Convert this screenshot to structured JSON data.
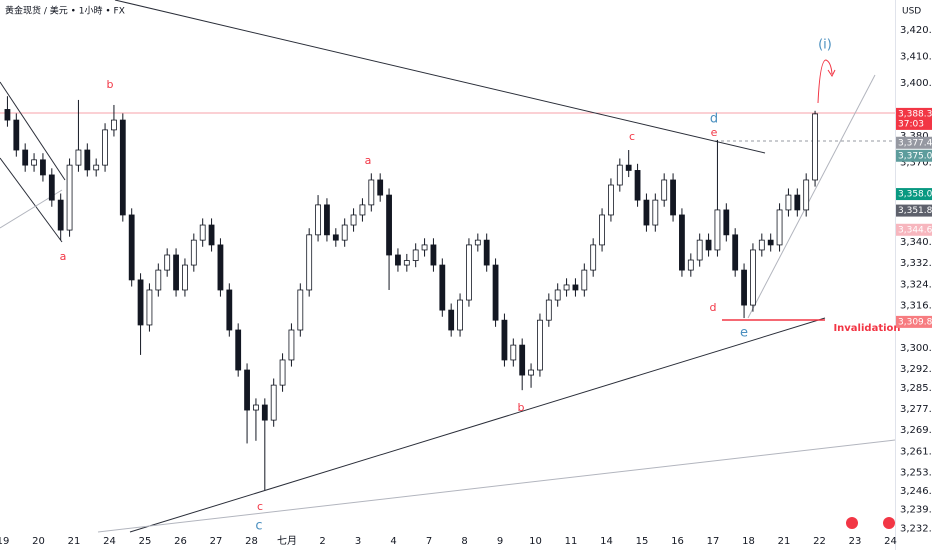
{
  "chart_data": {
    "type": "candlestick",
    "title": "黄金现货 / 美元 • 1小時 • FX",
    "currency": "USD",
    "countdown": "37:03",
    "categories": [
      "19",
      "20",
      "21",
      "24",
      "25",
      "26",
      "27",
      "28",
      "七月",
      "2",
      "3",
      "4",
      "7",
      "8",
      "9",
      "10",
      "11",
      "14",
      "15",
      "16",
      "17",
      "18",
      "21",
      "22",
      "23",
      "24"
    ],
    "up_color": "#ffffff",
    "down_color": "#131722",
    "ylim": [
      3223.8,
      3431.3
    ],
    "yticks": [
      {
        "value": 3420,
        "label": "3,420.00"
      },
      {
        "value": 3410,
        "label": "3,410.00"
      },
      {
        "value": 3400,
        "label": "3,400.00"
      },
      {
        "value": 3380,
        "label": "3,380.00"
      },
      {
        "value": 3370,
        "label": "3,370.00"
      },
      {
        "value": 3340,
        "label": "3,340.00"
      },
      {
        "value": 3332,
        "label": "3,332.00"
      },
      {
        "value": 3324,
        "label": "3,324.00"
      },
      {
        "value": 3316,
        "label": "3,316.00"
      },
      {
        "value": 3300,
        "label": "3,300.00"
      },
      {
        "value": 3292,
        "label": "3,292.00"
      },
      {
        "value": 3285,
        "label": "3,285.00"
      },
      {
        "value": 3277,
        "label": "3,277.00"
      },
      {
        "value": 3269,
        "label": "3,269.00"
      },
      {
        "value": 3261,
        "label": "3,261.00"
      },
      {
        "value": 3253,
        "label": "3,253.00"
      },
      {
        "value": 3246,
        "label": "3,246.00"
      },
      {
        "value": 3239,
        "label": "3,239.00"
      },
      {
        "value": 3232,
        "label": "3,232.00"
      }
    ],
    "price_labels": [
      {
        "value": 3388.33,
        "label": "3,388.33",
        "color": "#f23645"
      },
      {
        "value": 3377.44,
        "label": "3,377.44",
        "color": "#9598a1"
      },
      {
        "value": 3375.05,
        "label": "3,375.05",
        "color": "#5d9c9c"
      },
      {
        "value": 3358.08,
        "label": "3,358.08",
        "color": "#089981"
      },
      {
        "value": 3351.85,
        "label": "3,351.85",
        "color": "#5d606b"
      },
      {
        "value": 3344.61,
        "label": "3,344.61",
        "color": "#f7b6be"
      },
      {
        "value": 3309.86,
        "label": "3,309.86",
        "color": "#f77c80"
      }
    ],
    "annotations": [
      "b",
      "a",
      "a",
      "c",
      "c",
      "b",
      "c",
      "d",
      "e",
      "d",
      "e",
      "(i)",
      "Invalidation"
    ],
    "open": [
      3390.0,
      3386.0,
      3374.7,
      3369.0,
      3371.0,
      3365.3,
      3355.8,
      3344.5,
      3369.0,
      3374.7,
      3367.2,
      3369.0,
      3382.3,
      3386.0,
      3350.2,
      3325.7,
      3308.7,
      3321.9,
      3329.4,
      3335.1,
      3321.9,
      3331.3,
      3340.7,
      3346.4,
      3338.9,
      3321.9,
      3306.8,
      3291.7,
      3276.6,
      3278.5,
      3272.8,
      3286.0,
      3295.5,
      3306.8,
      3321.9,
      3342.7,
      3354.0,
      3342.7,
      3340.7,
      3346.4,
      3350.2,
      3354.0,
      3363.4,
      3357.7,
      3335.1,
      3331.3,
      3333.0,
      3337.0,
      3338.9,
      3331.3,
      3314.3,
      3306.8,
      3318.1,
      3338.9,
      3340.7,
      3331.3,
      3310.5,
      3295.5,
      3301.1,
      3289.8,
      3291.7,
      3310.5,
      3318.1,
      3321.9,
      3323.8,
      3321.9,
      3329.4,
      3338.9,
      3350.2,
      3361.5,
      3369.0,
      3367.0,
      3355.8,
      3346.4,
      3355.8,
      3363.4,
      3350.2,
      3329.4,
      3333.2,
      3340.7,
      3337.0,
      3352.1,
      3342.7,
      3329.4,
      3316.2,
      3337.0,
      3340.7,
      3338.9,
      3352.1,
      3357.7,
      3352.1,
      3363.4
    ],
    "high": [
      3395.0,
      3388.5,
      3377.2,
      3373.5,
      3373.5,
      3367.8,
      3358.3,
      3371.5,
      3393.6,
      3377.2,
      3371.5,
      3384.8,
      3391.7,
      3388.5,
      3352.7,
      3328.2,
      3324.4,
      3331.9,
      3337.6,
      3337.6,
      3333.8,
      3343.2,
      3348.9,
      3348.9,
      3341.4,
      3324.4,
      3309.3,
      3294.2,
      3281.0,
      3281.0,
      3288.5,
      3298.0,
      3309.3,
      3324.4,
      3345.2,
      3357.7,
      3356.5,
      3345.2,
      3348.9,
      3352.7,
      3356.5,
      3365.9,
      3365.9,
      3360.2,
      3337.6,
      3335.5,
      3339.5,
      3341.4,
      3341.4,
      3333.8,
      3316.8,
      3320.6,
      3341.4,
      3343.2,
      3343.2,
      3333.8,
      3313.0,
      3303.6,
      3303.6,
      3294.2,
      3313.0,
      3320.6,
      3324.4,
      3326.3,
      3326.3,
      3331.9,
      3341.4,
      3352.7,
      3364.0,
      3371.5,
      3374.7,
      3369.5,
      3358.3,
      3358.3,
      3365.9,
      3365.9,
      3352.7,
      3335.7,
      3343.2,
      3343.2,
      3378.5,
      3354.6,
      3345.2,
      3331.9,
      3339.5,
      3343.2,
      3343.2,
      3354.6,
      3360.2,
      3360.2,
      3365.9,
      3389.5
    ],
    "low": [
      3383.5,
      3372.2,
      3366.5,
      3366.5,
      3362.8,
      3353.3,
      3340.7,
      3342.0,
      3366.5,
      3364.7,
      3364.7,
      3366.5,
      3379.8,
      3347.7,
      3323.2,
      3297.4,
      3306.2,
      3319.4,
      3326.9,
      3319.4,
      3319.4,
      3328.8,
      3338.2,
      3336.4,
      3319.4,
      3304.3,
      3289.2,
      3264.0,
      3265.0,
      3246.4,
      3270.3,
      3283.5,
      3293.0,
      3304.3,
      3319.4,
      3340.2,
      3340.2,
      3338.2,
      3338.2,
      3343.9,
      3347.7,
      3351.5,
      3355.2,
      3321.9,
      3328.8,
      3328.8,
      3330.5,
      3334.5,
      3328.8,
      3311.8,
      3304.3,
      3304.3,
      3315.6,
      3336.4,
      3328.8,
      3308.0,
      3293.0,
      3293.0,
      3284.1,
      3285.0,
      3289.2,
      3308.0,
      3315.6,
      3319.4,
      3319.4,
      3319.4,
      3326.9,
      3336.4,
      3347.7,
      3359.0,
      3364.5,
      3353.3,
      3343.9,
      3343.9,
      3353.3,
      3347.7,
      3326.9,
      3326.9,
      3330.7,
      3334.5,
      3334.5,
      3340.2,
      3326.9,
      3311.3,
      3313.7,
      3334.5,
      3336.4,
      3336.4,
      3349.6,
      3349.6,
      3349.6,
      3360.9
    ],
    "close": [
      3386.0,
      3374.7,
      3369.0,
      3371.0,
      3365.3,
      3355.8,
      3344.5,
      3369.0,
      3374.7,
      3367.2,
      3369.0,
      3382.3,
      3386.0,
      3350.2,
      3325.7,
      3308.7,
      3321.9,
      3329.4,
      3335.1,
      3321.9,
      3331.3,
      3340.7,
      3346.4,
      3338.9,
      3321.9,
      3306.8,
      3291.7,
      3276.6,
      3278.5,
      3272.8,
      3286.0,
      3295.5,
      3306.8,
      3321.9,
      3342.7,
      3354.0,
      3342.7,
      3340.7,
      3346.4,
      3350.2,
      3354.0,
      3363.4,
      3357.7,
      3335.1,
      3331.3,
      3333.0,
      3337.0,
      3338.9,
      3331.3,
      3314.3,
      3306.8,
      3318.1,
      3338.9,
      3340.7,
      3331.3,
      3310.5,
      3295.5,
      3301.1,
      3289.8,
      3291.7,
      3310.5,
      3318.1,
      3321.9,
      3323.8,
      3321.9,
      3329.4,
      3338.9,
      3350.2,
      3361.5,
      3369.0,
      3367.0,
      3355.8,
      3346.4,
      3355.8,
      3363.4,
      3350.2,
      3329.4,
      3333.2,
      3340.7,
      3337.0,
      3352.1,
      3342.7,
      3329.4,
      3316.2,
      3337.0,
      3340.7,
      3338.9,
      3352.1,
      3357.7,
      3352.1,
      3363.4,
      3388.33
    ]
  }
}
